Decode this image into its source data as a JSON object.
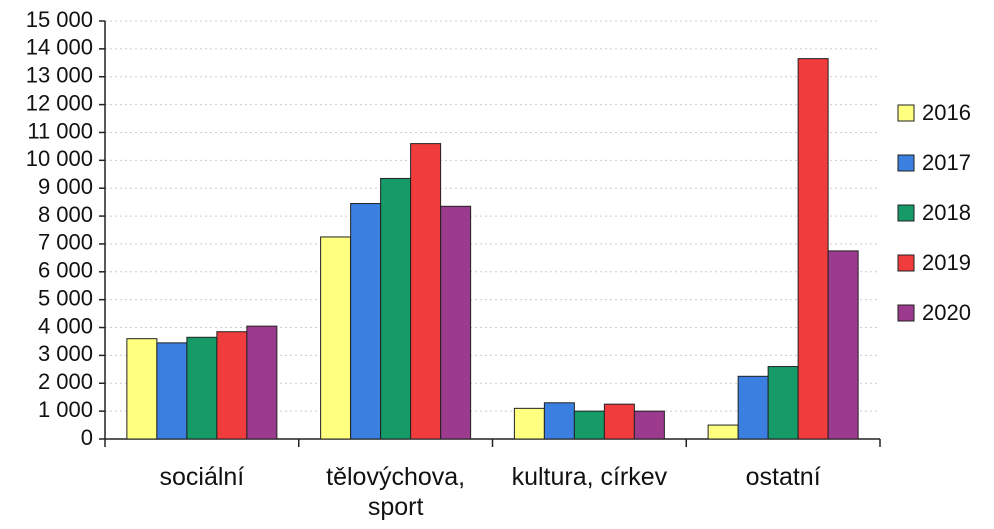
{
  "chart_data": {
    "type": "bar",
    "categories": [
      "sociální",
      "tělovýchova, sport",
      "kultura, církev",
      "ostatní"
    ],
    "series": [
      {
        "name": "2016",
        "color": "#ffff80",
        "values": [
          3600,
          7250,
          1100,
          500
        ]
      },
      {
        "name": "2017",
        "color": "#3b7fe0",
        "values": [
          3450,
          8450,
          1300,
          2250
        ]
      },
      {
        "name": "2018",
        "color": "#159a68",
        "values": [
          3650,
          9350,
          1000,
          2600
        ]
      },
      {
        "name": "2019",
        "color": "#f03c3c",
        "values": [
          3850,
          10600,
          1250,
          13650
        ]
      },
      {
        "name": "2020",
        "color": "#9c3a8e",
        "values": [
          4050,
          8350,
          1000,
          6750
        ]
      }
    ],
    "ylim": [
      0,
      15000
    ],
    "yticks": [
      0,
      {
        "value": 1000,
        "label": "1 000"
      },
      {
        "value": 2000,
        "label": "2 000"
      },
      {
        "value": 3000,
        "label": "3 000"
      },
      {
        "value": 4000,
        "label": "4 000"
      },
      {
        "value": 5000,
        "label": "5 000"
      },
      {
        "value": 6000,
        "label": "6 000"
      },
      {
        "value": 7000,
        "label": "7 000"
      },
      {
        "value": 8000,
        "label": "8 000"
      },
      {
        "value": 9000,
        "label": "9 000"
      },
      {
        "value": 10000,
        "label": "10 000"
      },
      {
        "value": 11000,
        "label": "11 000"
      },
      {
        "value": 12000,
        "label": "12 000"
      },
      {
        "value": 13000,
        "label": "13 000"
      },
      {
        "value": 14000,
        "label": "14 000"
      },
      {
        "value": 15000,
        "label": "15 000"
      }
    ],
    "grid": true,
    "legend": "right"
  }
}
